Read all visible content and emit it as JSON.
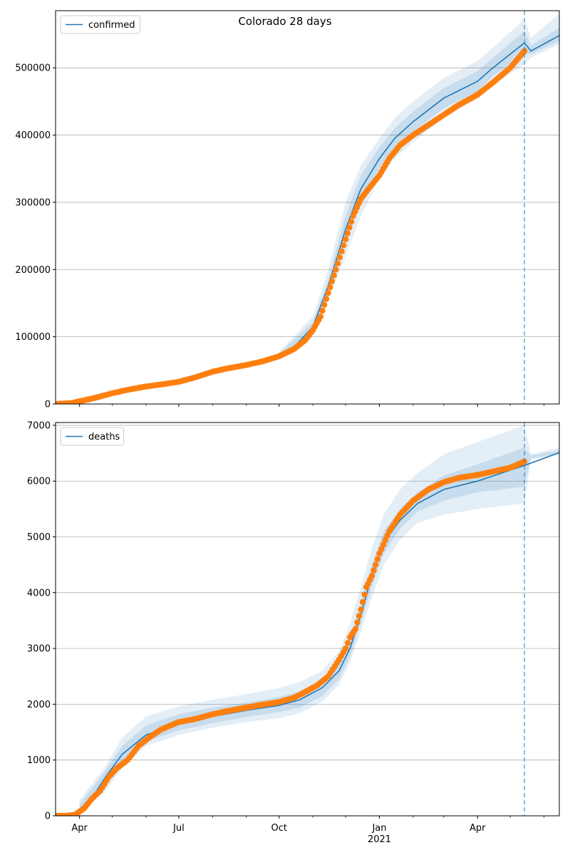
{
  "figure": {
    "title": "Colorado 28 days"
  },
  "colors": {
    "model_line": "#1f77b4",
    "band": "#1f77b4",
    "observed": "#ff7f0e",
    "grid": "#b0b0b0",
    "forecast_marker": "#1f77b4"
  },
  "x_axis": {
    "type": "date",
    "range": [
      "2020-03-10",
      "2021-06-15"
    ],
    "ticks": [
      {
        "date": "2020-04-01",
        "label": "Apr"
      },
      {
        "date": "2020-07-01",
        "label": "Jul"
      },
      {
        "date": "2020-10-01",
        "label": "Oct"
      },
      {
        "date": "2021-01-01",
        "label": "Jan",
        "sublabel": "2021"
      },
      {
        "date": "2021-04-01",
        "label": "Apr"
      }
    ],
    "minor_ticks": [
      "2020-05-01",
      "2020-06-01",
      "2020-08-01",
      "2020-09-01",
      "2020-11-01",
      "2020-12-01",
      "2021-02-01",
      "2021-03-01",
      "2021-05-01",
      "2021-06-01"
    ],
    "forecast_start": "2021-05-14"
  },
  "chart_data": [
    {
      "type": "line",
      "panel": "top",
      "legend": [
        "confirmed"
      ],
      "legend_position": "upper-left",
      "grid": "horizontal",
      "ylim": [
        0,
        585000
      ],
      "yticks": [
        {
          "value": 0,
          "label": "0"
        },
        {
          "value": 100000,
          "label": "100000"
        },
        {
          "value": 200000,
          "label": "200000"
        },
        {
          "value": 300000,
          "label": "300000"
        },
        {
          "value": 400000,
          "label": "400000"
        },
        {
          "value": 500000,
          "label": "500000"
        }
      ],
      "model": {
        "name": "confirmed",
        "x": [
          "2020-03-10",
          "2020-04-01",
          "2020-05-01",
          "2020-06-01",
          "2020-07-01",
          "2020-08-01",
          "2020-09-01",
          "2020-10-01",
          "2020-10-15",
          "2020-11-01",
          "2020-11-15",
          "2020-12-01",
          "2020-12-15",
          "2021-01-01",
          "2021-01-15",
          "2021-02-01",
          "2021-03-01",
          "2021-04-01",
          "2021-04-15",
          "2021-05-14",
          "2021-05-20",
          "2021-06-15"
        ],
        "y": [
          0,
          3000,
          16000,
          26000,
          34000,
          47000,
          58000,
          72000,
          85000,
          115000,
          175000,
          260000,
          320000,
          365000,
          395000,
          420000,
          455000,
          480000,
          500000,
          537000,
          525000,
          548000
        ]
      },
      "uncertainty_band": {
        "x": [
          "2020-10-01",
          "2020-11-01",
          "2020-11-15",
          "2020-12-01",
          "2020-12-15",
          "2021-01-01",
          "2021-01-15",
          "2021-02-01",
          "2021-03-01",
          "2021-04-01",
          "2021-04-15",
          "2021-05-14",
          "2021-05-20",
          "2021-06-15"
        ],
        "outer_lower": [
          68000,
          100000,
          155000,
          220000,
          280000,
          335000,
          365000,
          390000,
          425000,
          455000,
          475000,
          505000,
          515000,
          535000
        ],
        "outer_upper": [
          78000,
          130000,
          200000,
          300000,
          355000,
          395000,
          425000,
          450000,
          485000,
          510000,
          530000,
          572000,
          545000,
          580000
        ],
        "inner_lower": [
          70000,
          108000,
          165000,
          240000,
          300000,
          350000,
          380000,
          405000,
          440000,
          465000,
          488000,
          520000,
          520000,
          540000
        ],
        "inner_upper": [
          75000,
          122000,
          185000,
          280000,
          340000,
          382000,
          410000,
          435000,
          470000,
          495000,
          515000,
          555000,
          533000,
          560000
        ]
      },
      "observed": {
        "x": [
          "2020-03-10",
          "2020-03-25",
          "2020-04-01",
          "2020-04-15",
          "2020-05-01",
          "2020-05-15",
          "2020-06-01",
          "2020-06-15",
          "2020-07-01",
          "2020-07-15",
          "2020-08-01",
          "2020-08-15",
          "2020-09-01",
          "2020-09-15",
          "2020-10-01",
          "2020-10-15",
          "2020-10-25",
          "2020-11-01",
          "2020-11-08",
          "2020-11-15",
          "2020-11-22",
          "2020-12-01",
          "2020-12-08",
          "2020-12-15",
          "2020-12-22",
          "2021-01-01",
          "2021-01-10",
          "2021-01-20",
          "2021-02-01",
          "2021-02-15",
          "2021-03-01",
          "2021-03-15",
          "2021-04-01",
          "2021-04-15",
          "2021-05-01",
          "2021-05-14"
        ],
        "y": [
          0,
          1500,
          4000,
          9000,
          16000,
          21000,
          26000,
          29000,
          33000,
          39000,
          48000,
          53000,
          58000,
          63000,
          71000,
          82000,
          95000,
          110000,
          130000,
          165000,
          200000,
          245000,
          280000,
          305000,
          320000,
          340000,
          365000,
          385000,
          400000,
          415000,
          430000,
          445000,
          460000,
          478000,
          500000,
          525000
        ]
      }
    },
    {
      "type": "line",
      "panel": "bottom",
      "legend": [
        "deaths"
      ],
      "legend_position": "upper-left",
      "grid": "horizontal",
      "ylim": [
        0,
        7050
      ],
      "yticks": [
        {
          "value": 0,
          "label": "0"
        },
        {
          "value": 1000,
          "label": "1000"
        },
        {
          "value": 2000,
          "label": "2000"
        },
        {
          "value": 3000,
          "label": "3000"
        },
        {
          "value": 4000,
          "label": "4000"
        },
        {
          "value": 5000,
          "label": "5000"
        },
        {
          "value": 6000,
          "label": "6000"
        },
        {
          "value": 7000,
          "label": "7000"
        }
      ],
      "model": {
        "name": "deaths",
        "x": [
          "2020-03-10",
          "2020-03-25",
          "2020-04-10",
          "2020-04-25",
          "2020-05-10",
          "2020-06-01",
          "2020-07-01",
          "2020-08-01",
          "2020-09-01",
          "2020-10-01",
          "2020-10-20",
          "2020-11-10",
          "2020-11-25",
          "2020-12-05",
          "2020-12-15",
          "2020-12-25",
          "2021-01-05",
          "2021-01-20",
          "2021-02-05",
          "2021-03-01",
          "2021-04-01",
          "2021-05-14",
          "2021-06-15"
        ],
        "y": [
          0,
          30,
          250,
          700,
          1100,
          1450,
          1650,
          1780,
          1890,
          1980,
          2080,
          2300,
          2600,
          3000,
          3600,
          4300,
          4900,
          5300,
          5600,
          5850,
          6000,
          6280,
          6510
        ]
      },
      "uncertainty_band": {
        "x": [
          "2020-04-01",
          "2020-04-25",
          "2020-05-10",
          "2020-06-01",
          "2020-07-01",
          "2020-08-01",
          "2020-09-01",
          "2020-10-01",
          "2020-10-20",
          "2020-11-10",
          "2020-11-25",
          "2020-12-05",
          "2020-12-15",
          "2020-12-25",
          "2021-01-05",
          "2021-01-20",
          "2021-02-05",
          "2021-03-01",
          "2021-04-01",
          "2021-05-14",
          "2021-05-20",
          "2021-06-15"
        ],
        "outer_lower": [
          60,
          450,
          850,
          1250,
          1450,
          1580,
          1680,
          1750,
          1840,
          2050,
          2350,
          2750,
          3300,
          3900,
          4500,
          4950,
          5250,
          5400,
          5500,
          5600,
          6380,
          6470
        ],
        "outer_upper": [
          280,
          900,
          1400,
          1780,
          1960,
          2080,
          2180,
          2290,
          2400,
          2600,
          2950,
          3450,
          4100,
          4800,
          5400,
          5850,
          6150,
          6480,
          6700,
          7000,
          6480,
          6600
        ],
        "inner_lower": [
          100,
          530,
          950,
          1330,
          1530,
          1660,
          1770,
          1860,
          1940,
          2150,
          2450,
          2850,
          3450,
          4100,
          4700,
          5150,
          5450,
          5650,
          5800,
          5900,
          6410,
          6490
        ],
        "inner_upper": [
          200,
          820,
          1250,
          1620,
          1820,
          1940,
          2030,
          2130,
          2230,
          2450,
          2780,
          3200,
          3800,
          4500,
          5100,
          5500,
          5800,
          6100,
          6300,
          6600,
          6460,
          6550
        ]
      },
      "observed": {
        "x": [
          "2020-03-10",
          "2020-03-20",
          "2020-03-28",
          "2020-04-05",
          "2020-04-12",
          "2020-04-20",
          "2020-04-28",
          "2020-05-05",
          "2020-05-15",
          "2020-05-25",
          "2020-06-05",
          "2020-06-15",
          "2020-07-01",
          "2020-07-15",
          "2020-08-01",
          "2020-08-15",
          "2020-09-01",
          "2020-09-15",
          "2020-10-01",
          "2020-10-15",
          "2020-10-25",
          "2020-11-05",
          "2020-11-15",
          "2020-11-25",
          "2020-12-01",
          "2020-12-05",
          "2020-12-10",
          "2020-12-15",
          "2020-12-20",
          "2020-12-25",
          "2021-01-01",
          "2021-01-10",
          "2021-01-20",
          "2021-02-01",
          "2021-02-15",
          "2021-03-01",
          "2021-03-15",
          "2021-04-01",
          "2021-04-15",
          "2021-05-01",
          "2021-05-14"
        ],
        "y": [
          0,
          0,
          20,
          130,
          300,
          450,
          700,
          850,
          1000,
          1250,
          1420,
          1550,
          1680,
          1730,
          1820,
          1880,
          1940,
          1990,
          2040,
          2120,
          2220,
          2340,
          2500,
          2800,
          3000,
          3200,
          3350,
          3700,
          4100,
          4300,
          4700,
          5100,
          5400,
          5650,
          5850,
          5980,
          6060,
          6110,
          6170,
          6240,
          6350
        ]
      }
    }
  ]
}
